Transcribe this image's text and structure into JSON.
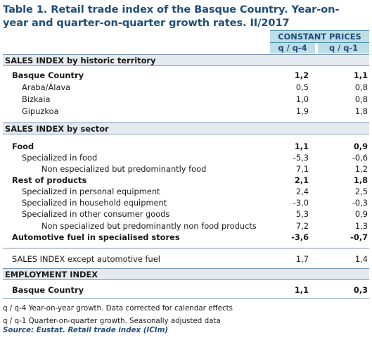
{
  "title": {
    "line1": "Table 1. Retail trade index of the Basque Country. Year-on-",
    "line2": "year and quarter-on-quarter growth rates. II/2017"
  },
  "header": {
    "group": "CONSTANT PRICES",
    "col1": "q / q-4",
    "col2": "q / q-1"
  },
  "sections": {
    "territory": "SALES INDEX by historic territory",
    "sector": "SALES INDEX by sector",
    "employment": "EMPLOYMENT INDEX"
  },
  "territory_rows": [
    {
      "label": "Basque Country",
      "v1": "1,2",
      "v2": "1,1"
    },
    {
      "label": "Araba/Álava",
      "v1": "0,5",
      "v2": "0,8"
    },
    {
      "label": "Bizkaia",
      "v1": "1,0",
      "v2": "0,8"
    },
    {
      "label": "Gipuzkoa",
      "v1": "1,9",
      "v2": "1,8"
    }
  ],
  "sector_rows": [
    {
      "label": "Food",
      "v1": "1,1",
      "v2": "0,9"
    },
    {
      "label": "Specialized in food",
      "v1": "-5,3",
      "v2": "-0,6"
    },
    {
      "label": "Non especialized but predominantly food",
      "v1": "7,1",
      "v2": "1,2"
    },
    {
      "label": "Rest of products",
      "v1": "2,1",
      "v2": "1,8"
    },
    {
      "label": "Specialized in personal equipment",
      "v1": "2,4",
      "v2": "2,5"
    },
    {
      "label": "Specialized in household equipment",
      "v1": "-3,0",
      "v2": "-0,3"
    },
    {
      "label": "Specialized in other consumer goods",
      "v1": "5,3",
      "v2": "0,9"
    },
    {
      "label": "Non specialized but predominantly non food products",
      "v1": "7,2",
      "v2": "1,3"
    },
    {
      "label": "Automotive fuel in specialised stores",
      "v1": "-3,6",
      "v2": "-0,7"
    }
  ],
  "except_row": {
    "label": "SALES INDEX except automotive fuel",
    "v1": "1,7",
    "v2": "1,4"
  },
  "employment_row": {
    "label": "Basque Country",
    "v1": "1,1",
    "v2": "0,3"
  },
  "notes": {
    "n1": "q / q-4 Year-on-year growth. Data corrected for calendar effects",
    "n2": "q / q-1 Quarter-on-quarter growth. Seasonally adjusted data",
    "source": "Source: Eustat. Retail trade index (ICIm)"
  }
}
